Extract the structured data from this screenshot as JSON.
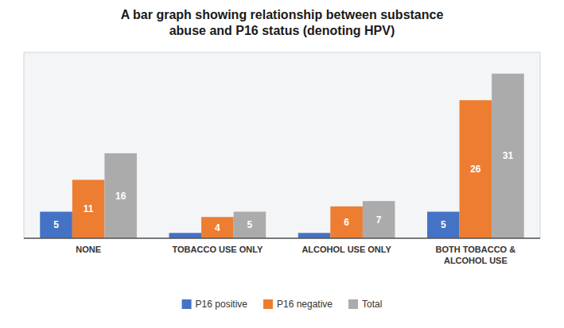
{
  "chart_data": {
    "type": "bar",
    "title": "A bar graph showing relationship between substance\nabuse and P16 status (denoting HPV)",
    "categories": [
      "NONE",
      "TOBACCO USE ONLY",
      "ALCOHOL USE ONLY",
      "BOTH TOBACCO &\nALCOHOL USE"
    ],
    "series": [
      {
        "name": "P16 positive",
        "color": "#4472C4",
        "values": [
          5,
          1,
          1,
          5
        ],
        "value_labels": [
          "5",
          null,
          null,
          "5"
        ]
      },
      {
        "name": "P16 negative",
        "color": "#ED7D31",
        "values": [
          11,
          4,
          6,
          26
        ]
      },
      {
        "name": "Total",
        "color": "#ABABAB",
        "values": [
          16,
          5,
          7,
          31
        ]
      }
    ],
    "ylim": [
      0,
      35
    ],
    "yticks": [],
    "grid": false,
    "legend": "bottom",
    "data_labels": true,
    "tick_labels": "x"
  }
}
